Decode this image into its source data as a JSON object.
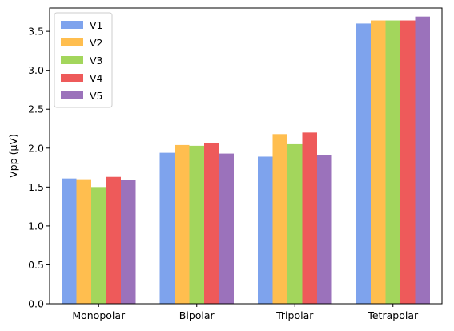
{
  "chart_data": {
    "type": "bar",
    "title": "",
    "xlabel": "",
    "ylabel": "Vpp (μV)",
    "categories": [
      "Monopolar",
      "Bipolar",
      "Tripolar",
      "Tetrapolar"
    ],
    "series": [
      {
        "name": "V1",
        "color": "#7ea3ed",
        "values": [
          1.61,
          1.94,
          1.89,
          3.6
        ]
      },
      {
        "name": "V2",
        "color": "#ffbe4f",
        "values": [
          1.6,
          2.04,
          2.18,
          3.64
        ]
      },
      {
        "name": "V3",
        "color": "#a3d65c",
        "values": [
          1.5,
          2.03,
          2.05,
          3.64
        ]
      },
      {
        "name": "V4",
        "color": "#ee5a5a",
        "values": [
          1.63,
          2.07,
          2.2,
          3.64
        ]
      },
      {
        "name": "V5",
        "color": "#9b72bb",
        "values": [
          1.59,
          1.93,
          1.91,
          3.69
        ]
      }
    ],
    "ylim": [
      0,
      3.8
    ],
    "yticks": [
      0.0,
      0.5,
      1.0,
      1.5,
      2.0,
      2.5,
      3.0,
      3.5
    ],
    "ytick_labels": [
      "0.0",
      "0.5",
      "1.0",
      "1.5",
      "2.0",
      "2.5",
      "3.0",
      "3.5"
    ],
    "grid": false,
    "legend_position": "top-left"
  }
}
